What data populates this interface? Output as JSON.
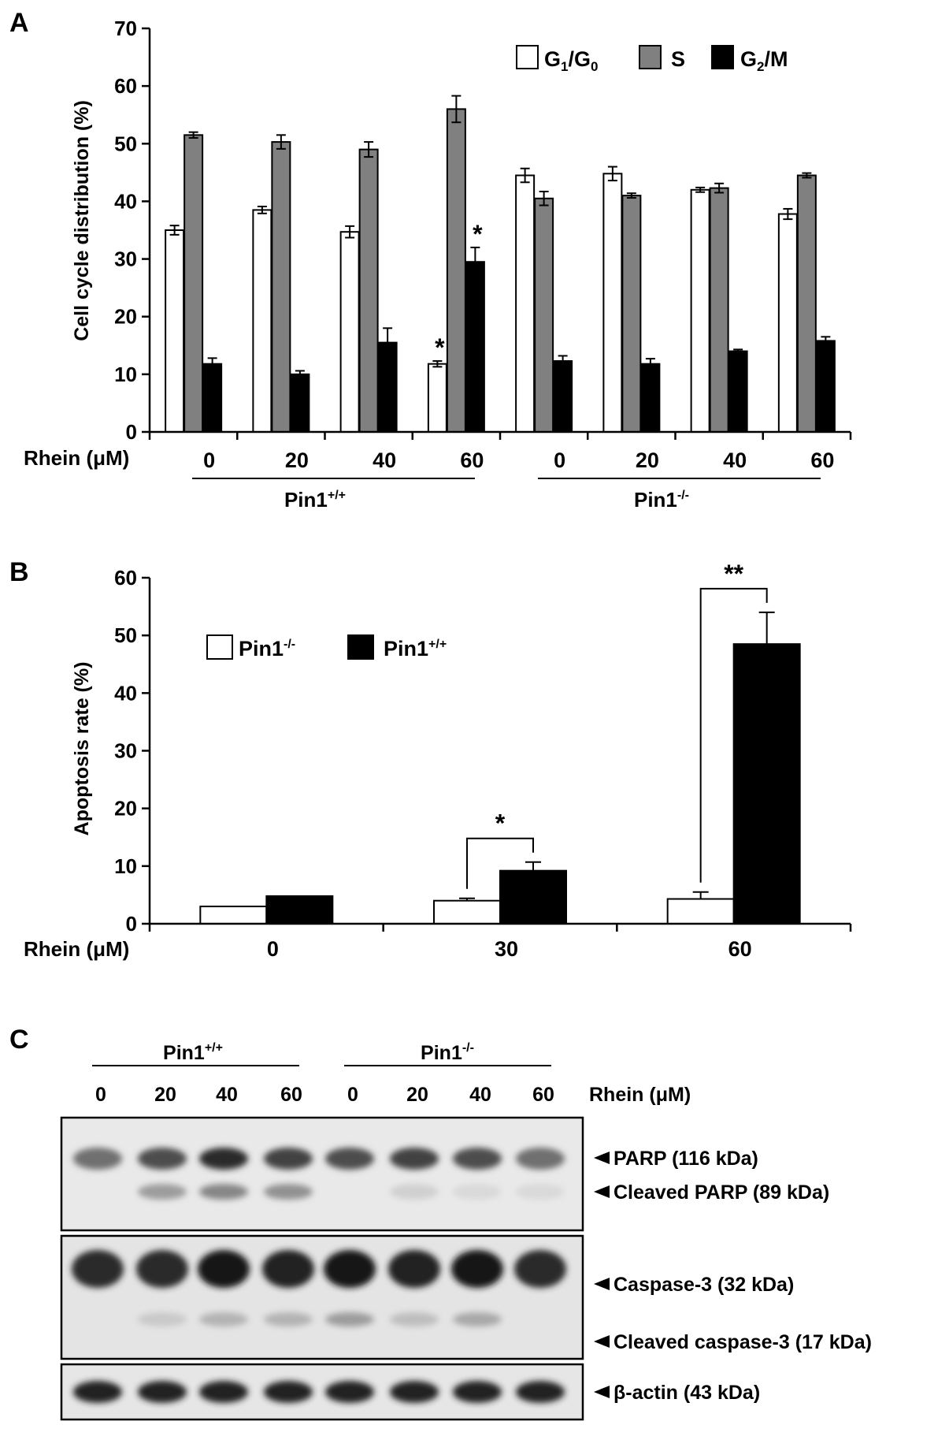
{
  "chart_data": [
    {
      "panel_label": "A",
      "type": "bar",
      "ylabel": "Cell cycle distribution (%)",
      "ylim": [
        0,
        70
      ],
      "yticks": [
        "0",
        "10",
        "20",
        "30",
        "40",
        "50",
        "60",
        "70"
      ],
      "xaxis_label": "Rhein (μM)",
      "categories": [
        "0",
        "20",
        "40",
        "60",
        "0",
        "20",
        "40",
        "60"
      ],
      "groups": [
        {
          "label": "Pin1",
          "sup": "+/+"
        },
        {
          "label": "Pin1",
          "sup": "-/-"
        }
      ],
      "legend_position": "top-right",
      "series": [
        {
          "name": "G1/G0",
          "name_main": "G",
          "name_sub1": "1",
          "name_mid": "/G",
          "name_sub2": "0",
          "color": "#ffffff",
          "values": [
            35.0,
            38.5,
            34.7,
            11.8,
            44.5,
            44.8,
            42.0,
            37.8
          ],
          "errors": [
            0.8,
            0.6,
            1.0,
            0.5,
            1.2,
            1.2,
            0.4,
            0.9
          ]
        },
        {
          "name": "S",
          "color": "#808080",
          "values": [
            51.5,
            50.3,
            49.0,
            56.0,
            40.5,
            41.0,
            42.3,
            44.5
          ],
          "errors": [
            0.5,
            1.2,
            1.3,
            2.3,
            1.2,
            0.4,
            0.8,
            0.4
          ]
        },
        {
          "name": "G2/M",
          "name_main": "G",
          "name_sub1": "2",
          "name_mid": "/M",
          "color": "#000000",
          "values": [
            11.8,
            10.0,
            15.5,
            29.5,
            12.3,
            11.8,
            14.0,
            15.8
          ],
          "errors": [
            1.0,
            0.6,
            2.5,
            2.5,
            0.9,
            0.9,
            0.3,
            0.7
          ]
        }
      ],
      "annotations": [
        {
          "text": "*",
          "category_index": 3,
          "series_index": 0
        },
        {
          "text": "*",
          "category_index": 3,
          "series_index": 2
        }
      ]
    },
    {
      "panel_label": "B",
      "type": "bar",
      "ylabel": "Apoptosis rate (%)",
      "ylim": [
        0,
        60
      ],
      "yticks": [
        "0",
        "10",
        "20",
        "30",
        "40",
        "50",
        "60"
      ],
      "xaxis_label": "Rhein (μM)",
      "categories": [
        "0",
        "30",
        "60"
      ],
      "legend_position": "top-left",
      "series": [
        {
          "name": "Pin1-/-",
          "name_main": "Pin1",
          "name_sup": "-/-",
          "color": "#ffffff",
          "values": [
            3.0,
            4.0,
            4.3
          ],
          "errors": [
            0.0,
            0.4,
            1.2
          ]
        },
        {
          "name": "Pin1+/+",
          "name_main": "Pin1",
          "name_sup": "+/+",
          "color": "#000000",
          "values": [
            4.8,
            9.2,
            48.5
          ],
          "errors": [
            0.0,
            1.5,
            5.5
          ]
        }
      ],
      "significance": [
        {
          "category_index": 1,
          "text": "*"
        },
        {
          "category_index": 2,
          "text": "**"
        }
      ]
    }
  ],
  "blot": {
    "panel_label": "C",
    "groups": [
      {
        "label": "Pin1",
        "sup": "+/+"
      },
      {
        "label": "Pin1",
        "sup": "-/-"
      }
    ],
    "lanes": [
      "0",
      "20",
      "40",
      "60",
      "0",
      "20",
      "40",
      "60"
    ],
    "lanes_header": "Rhein (μM)",
    "markers": [
      {
        "text": "PARP (116 kDa)",
        "intensity": [
          0.55,
          0.7,
          0.85,
          0.75,
          0.7,
          0.75,
          0.7,
          0.55
        ]
      },
      {
        "text": "Cleaved PARP (89 kDa)",
        "intensity": [
          0.0,
          0.35,
          0.45,
          0.4,
          0.0,
          0.12,
          0.08,
          0.08
        ]
      },
      {
        "text": "Caspase-3 (32 kDa)",
        "intensity": [
          0.85,
          0.85,
          0.95,
          0.9,
          0.95,
          0.9,
          0.95,
          0.85
        ]
      },
      {
        "text": "Cleaved caspase-3 (17 kDa)",
        "intensity": [
          0.0,
          0.15,
          0.25,
          0.25,
          0.35,
          0.2,
          0.3,
          0.0
        ]
      },
      {
        "text": "β-actin (43 kDa)",
        "intensity": [
          0.9,
          0.9,
          0.9,
          0.9,
          0.9,
          0.9,
          0.9,
          0.9
        ]
      }
    ]
  }
}
